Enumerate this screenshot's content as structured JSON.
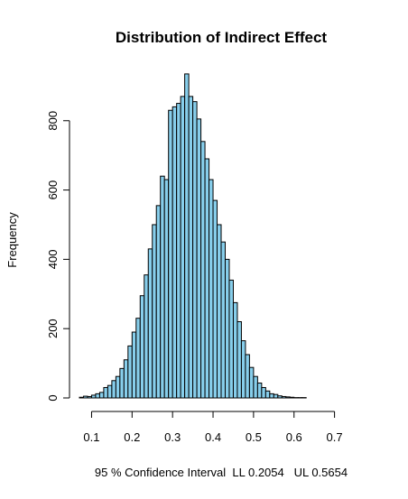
{
  "chart_data": {
    "type": "bar",
    "title": "Distribution of Indirect Effect",
    "ylabel": "Frequency",
    "xlabel": "95 % Confidence Interval  LL 0.2054   UL 0.5654",
    "x_ticks": [
      "0.1",
      "0.2",
      "0.3",
      "0.4",
      "0.5",
      "0.6",
      "0.7"
    ],
    "x_tick_values": [
      0.1,
      0.2,
      0.3,
      0.4,
      0.5,
      0.6,
      0.7
    ],
    "y_ticks": [
      "0",
      "200",
      "400",
      "600",
      "800"
    ],
    "y_tick_values": [
      0,
      200,
      400,
      600,
      800
    ],
    "xlim": [
      0.07,
      0.77
    ],
    "ylim": [
      0,
      940
    ],
    "bin_width": 0.01,
    "bin_start": 0.07,
    "values": [
      2,
      5,
      4,
      8,
      12,
      16,
      30,
      36,
      50,
      62,
      85,
      110,
      150,
      190,
      230,
      295,
      355,
      430,
      500,
      555,
      640,
      630,
      830,
      840,
      850,
      870,
      935,
      870,
      855,
      805,
      740,
      690,
      630,
      570,
      500,
      450,
      400,
      340,
      275,
      220,
      165,
      125,
      88,
      62,
      43,
      30,
      20,
      12,
      10,
      6,
      4,
      3,
      2,
      1,
      1,
      1
    ]
  }
}
